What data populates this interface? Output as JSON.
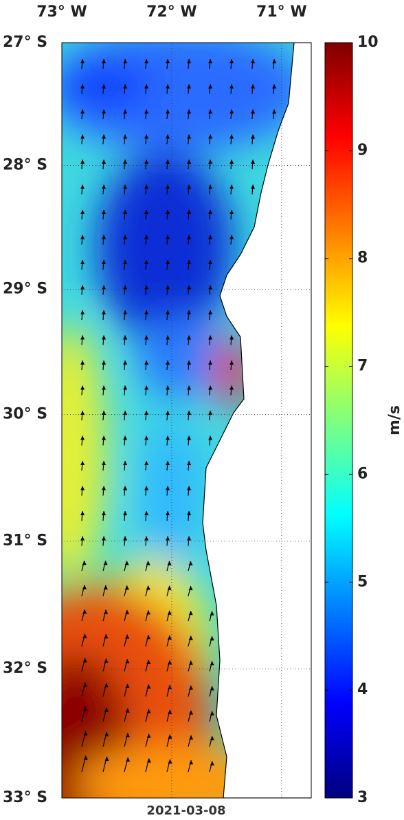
{
  "map": {
    "date": "2021-03-08",
    "lonlim": [
      -73,
      -70.73
    ],
    "latlim": [
      -33,
      -27
    ],
    "lonticks": [
      {
        "value": -73,
        "label": "73° W"
      },
      {
        "value": -72,
        "label": "72° W"
      },
      {
        "value": -71,
        "label": "71° W"
      }
    ],
    "latticks": [
      {
        "value": -27,
        "label": "27° S"
      },
      {
        "value": -28,
        "label": "28° S"
      },
      {
        "value": -29,
        "label": "29° S"
      },
      {
        "value": -30,
        "label": "30° S"
      },
      {
        "value": -31,
        "label": "31° S"
      },
      {
        "value": -32,
        "label": "32° S"
      },
      {
        "value": -33,
        "label": "33° S"
      }
    ],
    "colorbar": {
      "label": "m/s",
      "clim": [
        3,
        10
      ],
      "ticks": [
        3,
        4,
        5,
        6,
        7,
        8,
        9,
        10
      ],
      "colormap": [
        "#00007f",
        "#0000ff",
        "#007fff",
        "#00ffff",
        "#7fff7f",
        "#ffff00",
        "#ff7f00",
        "#ff0000",
        "#7f0000"
      ]
    }
  }
}
